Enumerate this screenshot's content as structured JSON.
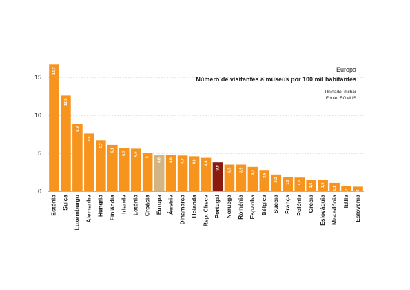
{
  "chart_data": {
    "type": "bar",
    "region": "Europa",
    "title": "Número de visitantes a museus por 100 mil habitantes",
    "unit_note": "Unidade: milhar",
    "source_note": "Fonte: EGMUS",
    "ylim": [
      0,
      17
    ],
    "yticks": [
      "0",
      "5",
      "10",
      "15"
    ],
    "grid": true,
    "categories": [
      "Estónia",
      "Suíça",
      "Luxemburgo",
      "Alemanha",
      "Hungria",
      "Finlândia",
      "Irlanda",
      "Letónia",
      "Croácia",
      "Europa",
      "Áustria",
      "Dinamarca",
      "Holanda",
      "Rep. Checa",
      "Portugal",
      "Noruega",
      "Roménia",
      "Espanha",
      "Bélgica",
      "Suécia",
      "França",
      "Polónia",
      "Grécia",
      "Eslováquia",
      "Macedónia",
      "Itália",
      "Eslovénia"
    ],
    "values": [
      16.7,
      12.6,
      8.9,
      7.6,
      6.7,
      6.1,
      5.7,
      5.6,
      5.0,
      4.8,
      4.8,
      4.7,
      4.6,
      4.4,
      3.8,
      3.5,
      3.5,
      3.2,
      2.8,
      2.2,
      1.9,
      1.8,
      1.5,
      1.5,
      1.1,
      0.7,
      0.6
    ],
    "value_labels": [
      "16,7",
      "12,6",
      "8,9",
      "7,6",
      "6,7",
      "6,1",
      "5,7",
      "5,6",
      "5",
      "4,8",
      "4,8",
      "4,7",
      "4,6",
      "4,4",
      "3,8",
      "3,5",
      "3,5",
      "3,2",
      "2,8",
      "2,2",
      "1,9",
      "1,8",
      "1,5",
      "1,5",
      "1,1",
      "0,7",
      "0,6"
    ],
    "colors": {
      "default": "#F7941D",
      "Europa": "#D2B583",
      "Portugal": "#8B1A0E"
    }
  }
}
